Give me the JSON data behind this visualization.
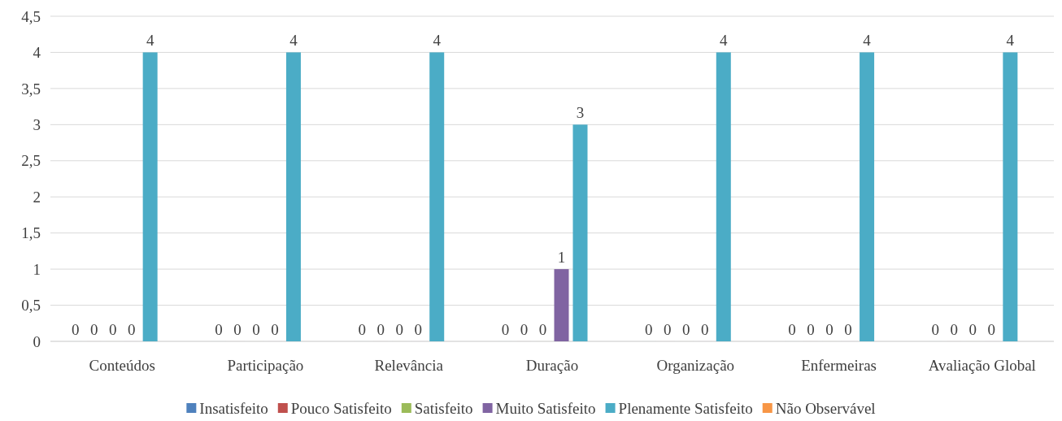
{
  "chart_data": {
    "type": "bar",
    "categories": [
      "Conteúdos",
      "Participação",
      "Relevância",
      "Duração",
      "Organização",
      "Enfermeiras",
      "Avaliação Global"
    ],
    "series": [
      {
        "name": "Insatisfeito",
        "color": "#4f81bd",
        "values": [
          0,
          0,
          0,
          0,
          0,
          0,
          0
        ]
      },
      {
        "name": "Pouco Satisfeito",
        "color": "#c0504d",
        "values": [
          0,
          0,
          0,
          0,
          0,
          0,
          0
        ]
      },
      {
        "name": "Satisfeito",
        "color": "#9bbb59",
        "values": [
          0,
          0,
          0,
          0,
          0,
          0,
          0
        ]
      },
      {
        "name": "Muito Satisfeito",
        "color": "#8064a2",
        "values": [
          0,
          0,
          0,
          1,
          0,
          0,
          0
        ]
      },
      {
        "name": "Plenamente Satisfeito",
        "color": "#4bacc6",
        "values": [
          4,
          4,
          4,
          3,
          4,
          4,
          4
        ]
      },
      {
        "name": "Não Observável",
        "color": "#f79646",
        "values": [
          null,
          null,
          null,
          null,
          null,
          null,
          null
        ]
      }
    ],
    "ylim": [
      0,
      4.5
    ],
    "yticks": [
      0,
      {
        "value": 0.5,
        "label": "0,5"
      },
      1,
      {
        "value": 1.5,
        "label": "1,5"
      },
      2,
      {
        "value": 2.5,
        "label": "2,5"
      },
      3,
      {
        "value": 3.5,
        "label": "3,5"
      },
      4,
      {
        "value": 4.5,
        "label": "4,5"
      }
    ],
    "grid": "y",
    "data_labels": true,
    "legend": "bottom"
  }
}
